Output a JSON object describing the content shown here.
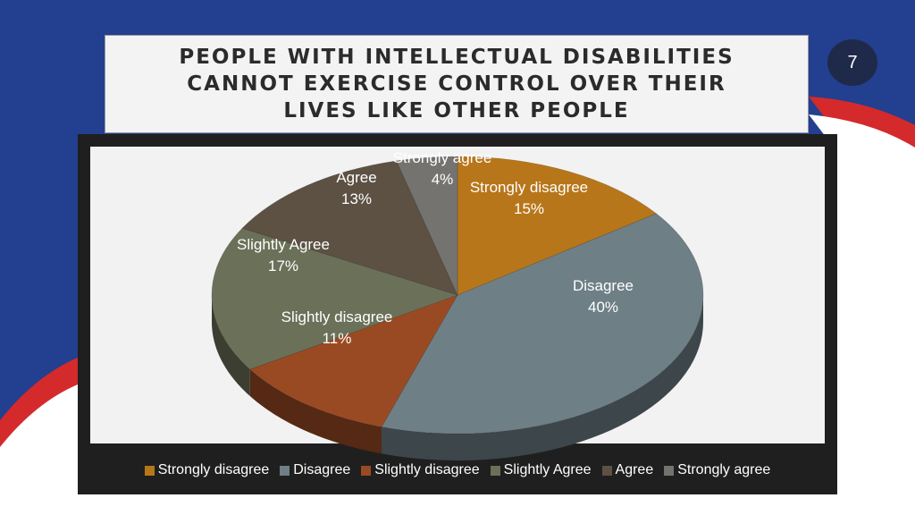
{
  "slide": {
    "title": "PEOPLE WITH INTELLECTUAL DISABILITIES\nCANNOT EXERCISE CONTROL OVER THEIR\nLIVES LIKE OTHER PEOPLE",
    "page_number": "7",
    "colors": {
      "blue": "#233f8f",
      "red": "#d42a2c",
      "badge": "#1f2a4a"
    }
  },
  "chart_data": {
    "type": "pie",
    "title": "",
    "series": [
      {
        "name": "Strongly disagree",
        "value": 15,
        "label": "15%",
        "color": "#b8761a"
      },
      {
        "name": "Disagree",
        "value": 40,
        "label": "40%",
        "color": "#6e7f86"
      },
      {
        "name": "Slightly disagree",
        "value": 11,
        "label": "11%",
        "color": "#9a4a22"
      },
      {
        "name": "Slightly Agree",
        "value": 17,
        "label": "17%",
        "color": "#6b7159"
      },
      {
        "name": "Agree",
        "value": 13,
        "label": "13%",
        "color": "#5c5143"
      },
      {
        "name": "Strongly agree",
        "value": 4,
        "label": "4%",
        "color": "#757370"
      }
    ],
    "legend_position": "bottom"
  }
}
